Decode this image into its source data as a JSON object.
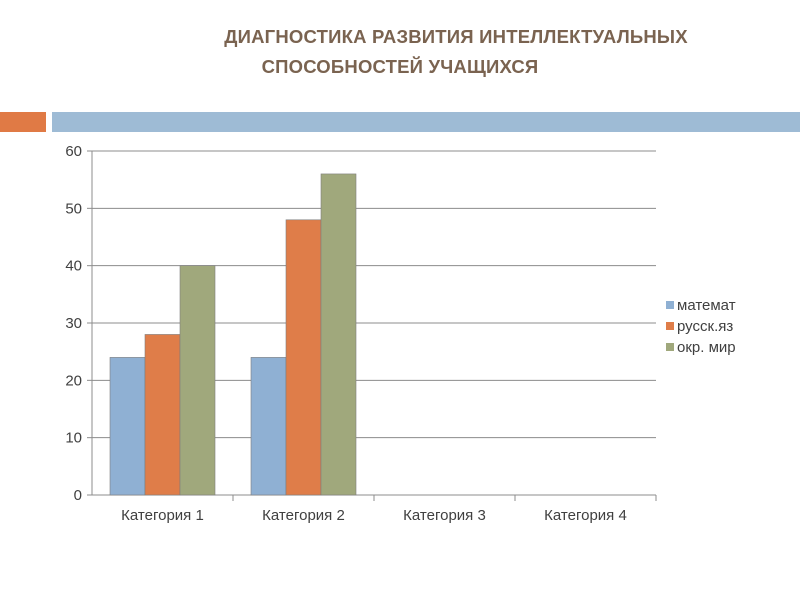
{
  "slide": {
    "title_line1": "ДИАГНОСТИКА РАЗВИТИЯ ИНТЕЛЛЕКТУАЛЬНЫХ",
    "title_line2": "СПОСОБНОСТЕЙ УЧАЩИХСЯ",
    "accent_colors": [
      "#e07a45",
      "#9ebbd5"
    ]
  },
  "chart_data": {
    "type": "bar",
    "title": "",
    "xlabel": "",
    "ylabel": "",
    "categories": [
      "Категория 1",
      "Категория 2",
      "Категория 3",
      "Категория 4"
    ],
    "ylim": [
      0,
      60
    ],
    "yticks": [
      0,
      10,
      20,
      30,
      40,
      50,
      60
    ],
    "grid": true,
    "legend_position": "right",
    "series": [
      {
        "name": "математ",
        "values": [
          24,
          24,
          null,
          null
        ],
        "color": "#8fb0d3"
      },
      {
        "name": "русск.яз",
        "values": [
          28,
          48,
          null,
          null
        ],
        "color": "#df7d49"
      },
      {
        "name": "окр. мир",
        "values": [
          40,
          56,
          null,
          null
        ],
        "color": "#a0a87c"
      }
    ]
  }
}
